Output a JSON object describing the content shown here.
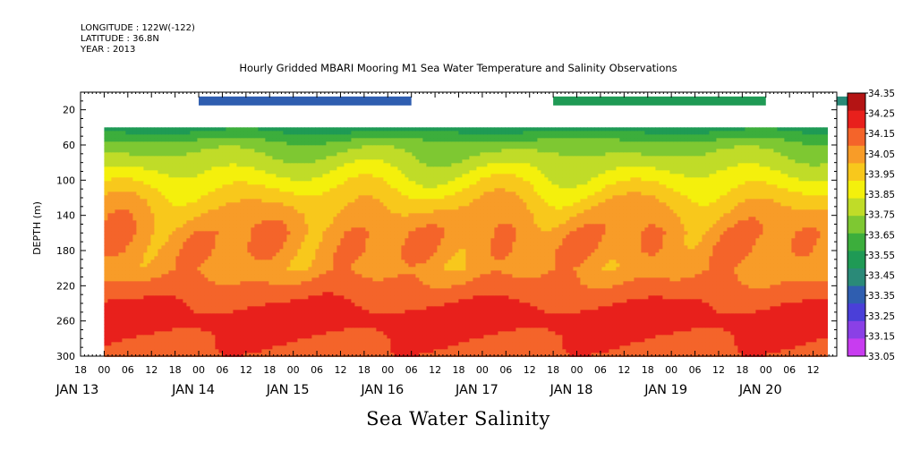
{
  "header": {
    "longitude": "LONGITUDE : 122W(-122)",
    "latitude": "LATITUDE : 36.8N",
    "year": "YEAR : 2013"
  },
  "chart_data": {
    "type": "heatmap",
    "title": "Hourly Gridded MBARI Mooring M1 Sea Water Temperature and Salinity Observations",
    "variable_label": "Sea Water Salinity",
    "ylabel": "DEPTH (m)",
    "xlabel": "",
    "ylim": [
      300,
      0
    ],
    "y_ticks": [
      20,
      60,
      100,
      140,
      180,
      220,
      260,
      300
    ],
    "x_range_hours": [
      "JAN 12 18:00",
      "JAN 20 18:00"
    ],
    "x_hour_ticks": [
      "18",
      "00",
      "06",
      "12",
      "18",
      "00",
      "06",
      "12",
      "18",
      "00",
      "06",
      "12",
      "18",
      "00",
      "06",
      "12",
      "18",
      "00",
      "06",
      "12",
      "18",
      "00",
      "06",
      "12",
      "18",
      "00",
      "06",
      "12",
      "18",
      "00",
      "06",
      "12"
    ],
    "x_day_labels": [
      "JAN 13",
      "JAN 14",
      "JAN 15",
      "JAN 16",
      "JAN 17",
      "JAN 18",
      "JAN 19",
      "JAN 20"
    ],
    "colorbar": {
      "levels": [
        33.05,
        33.15,
        33.25,
        33.35,
        33.45,
        33.55,
        33.65,
        33.75,
        33.85,
        33.95,
        34.05,
        34.15,
        34.25,
        34.35
      ],
      "labels": [
        "34.35",
        "34.25",
        "34.15",
        "34.05",
        "33.95",
        "33.85",
        "33.75",
        "33.65",
        "33.55",
        "33.45",
        "33.35",
        "33.25",
        "33.15",
        "33.05"
      ],
      "colors": [
        "#c83cf0",
        "#8a40e6",
        "#4a3fd8",
        "#2f5eb0",
        "#2a8a78",
        "#1f9a55",
        "#3cae3c",
        "#7ec832",
        "#c0dc28",
        "#f4f00c",
        "#f8c81c",
        "#f89c28",
        "#f4642a",
        "#e8201c",
        "#b41414"
      ]
    },
    "surface_sensor": {
      "depth_m": 10,
      "segments": [
        {
          "start": "JAN 14 00",
          "end": "JAN 16 06",
          "salinity": 33.31
        },
        {
          "start": "JAN 17 18",
          "end": "JAN 20 00",
          "salinity": 33.48
        },
        {
          "start": "JAN 20 18",
          "end": "JAN 20 21",
          "salinity": 33.44
        }
      ]
    },
    "depth_profile_mean": [
      {
        "depth": 40,
        "salinity": 33.5
      },
      {
        "depth": 60,
        "salinity": 33.7
      },
      {
        "depth": 80,
        "salinity": 33.8
      },
      {
        "depth": 100,
        "salinity": 33.9
      },
      {
        "depth": 120,
        "salinity": 34.0
      },
      {
        "depth": 140,
        "salinity": 34.08
      },
      {
        "depth": 160,
        "salinity": 34.13
      },
      {
        "depth": 180,
        "salinity": 34.13
      },
      {
        "depth": 200,
        "salinity": 34.1
      },
      {
        "depth": 220,
        "salinity": 34.18
      },
      {
        "depth": 240,
        "salinity": 34.25
      },
      {
        "depth": 260,
        "salinity": 34.3
      },
      {
        "depth": 280,
        "salinity": 34.25
      },
      {
        "depth": 300,
        "salinity": 34.22
      }
    ]
  }
}
